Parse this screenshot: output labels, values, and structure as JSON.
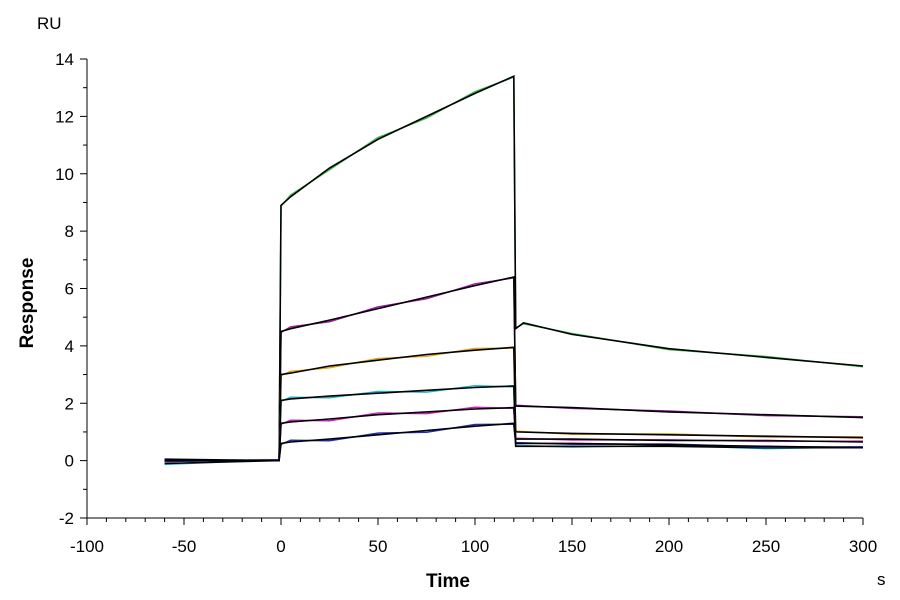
{
  "chart_data": {
    "type": "line",
    "title": "",
    "xlabel": "Time",
    "ylabel": "Response",
    "x_unit": "s",
    "y_unit": "RU",
    "xlim": [
      -100,
      300
    ],
    "ylim": [
      -2,
      14
    ],
    "x_ticks": [
      -100,
      -50,
      0,
      50,
      100,
      150,
      200,
      250,
      300
    ],
    "y_ticks": [
      -2,
      0,
      2,
      4,
      6,
      8,
      10,
      12,
      14
    ],
    "x_tick_labels": [
      "-100",
      "-50",
      "0",
      "50",
      "100",
      "150",
      "200",
      "250",
      "300"
    ],
    "y_tick_labels": [
      "-2",
      "0",
      "2",
      "4",
      "6",
      "8",
      "10",
      "12",
      "14"
    ],
    "grid": false,
    "legend": "none",
    "series": [
      {
        "color": "#3cb44b",
        "fit_color": "#000000",
        "x": [
          -60,
          -1,
          0,
          5,
          25,
          50,
          75,
          100,
          120,
          121,
          125,
          150,
          200,
          250,
          300
        ],
        "y": [
          0.05,
          0,
          8.9,
          9.2,
          10.2,
          11.2,
          12.0,
          12.8,
          13.4,
          4.6,
          4.8,
          4.4,
          3.9,
          3.6,
          3.3
        ]
      },
      {
        "color": "#9b1fa6",
        "fit_color": "#000000",
        "x": [
          -60,
          -1,
          0,
          5,
          25,
          50,
          75,
          100,
          120,
          121,
          150,
          200,
          250,
          300
        ],
        "y": [
          0,
          0,
          4.5,
          4.6,
          4.9,
          5.3,
          5.7,
          6.1,
          6.4,
          1.9,
          1.85,
          1.7,
          1.6,
          1.5
        ]
      },
      {
        "color": "#e3a21a",
        "fit_color": "#000000",
        "x": [
          -60,
          -1,
          0,
          5,
          25,
          50,
          75,
          100,
          120,
          121,
          150,
          200,
          250,
          300
        ],
        "y": [
          0,
          0,
          3.0,
          3.05,
          3.3,
          3.5,
          3.7,
          3.85,
          3.95,
          1.0,
          0.95,
          0.9,
          0.85,
          0.8
        ]
      },
      {
        "color": "#1fb5c9",
        "fit_color": "#000000",
        "x": [
          -60,
          -1,
          0,
          5,
          25,
          50,
          75,
          100,
          120,
          121,
          150,
          200,
          250,
          300
        ],
        "y": [
          -0.1,
          0,
          2.1,
          2.15,
          2.25,
          2.35,
          2.45,
          2.55,
          2.6,
          0.5,
          0.5,
          0.5,
          0.45,
          0.45
        ]
      },
      {
        "color": "#d11fbf",
        "fit_color": "#000000",
        "x": [
          -60,
          -1,
          0,
          5,
          25,
          50,
          75,
          100,
          120,
          121,
          150,
          200,
          250,
          300
        ],
        "y": [
          0,
          0,
          1.3,
          1.35,
          1.45,
          1.6,
          1.7,
          1.8,
          1.85,
          0.75,
          0.75,
          0.7,
          0.7,
          0.65
        ]
      },
      {
        "color": "#1f2fb5",
        "fit_color": "#000000",
        "x": [
          -60,
          -1,
          0,
          5,
          25,
          50,
          75,
          100,
          120,
          121,
          150,
          200,
          250,
          300
        ],
        "y": [
          0,
          0,
          0.6,
          0.65,
          0.75,
          0.9,
          1.05,
          1.2,
          1.3,
          0.6,
          0.6,
          0.55,
          0.5,
          0.45
        ]
      }
    ]
  }
}
